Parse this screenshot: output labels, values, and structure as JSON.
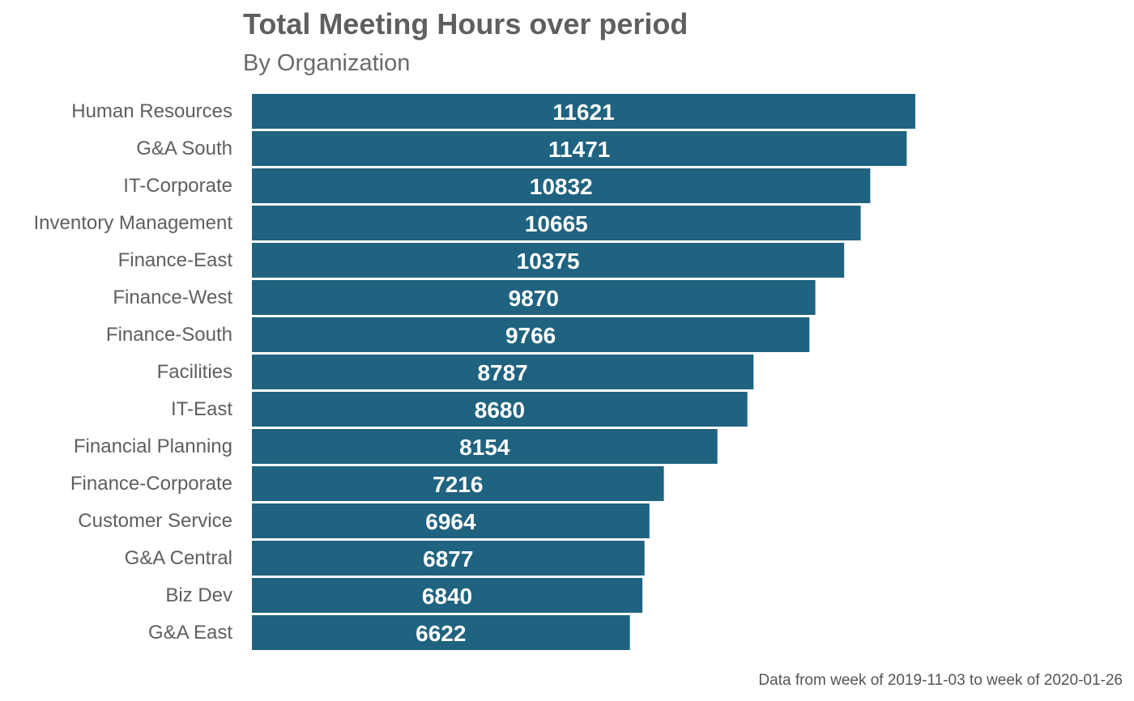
{
  "chart_data": {
    "type": "bar",
    "orientation": "horizontal",
    "title": "Total Meeting Hours over period",
    "subtitle": "By Organization",
    "caption": "Data from week of 2019-11-03 to week of 2020-01-26",
    "xlabel": "",
    "ylabel": "",
    "grid": false,
    "legend": "none",
    "bar_color": "#1f6380",
    "categories": [
      "Human Resources",
      "G&A South",
      "IT-Corporate",
      "Inventory Management",
      "Finance-East",
      "Finance-West",
      "Finance-South",
      "Facilities",
      "IT-East",
      "Financial Planning",
      "Finance-Corporate",
      "Customer Service",
      "G&A Central",
      "Biz Dev",
      "G&A East"
    ],
    "values": [
      11621,
      11471,
      10832,
      10665,
      10375,
      9870,
      9766,
      8787,
      8680,
      8154,
      7216,
      6964,
      6877,
      6840,
      6622
    ]
  }
}
